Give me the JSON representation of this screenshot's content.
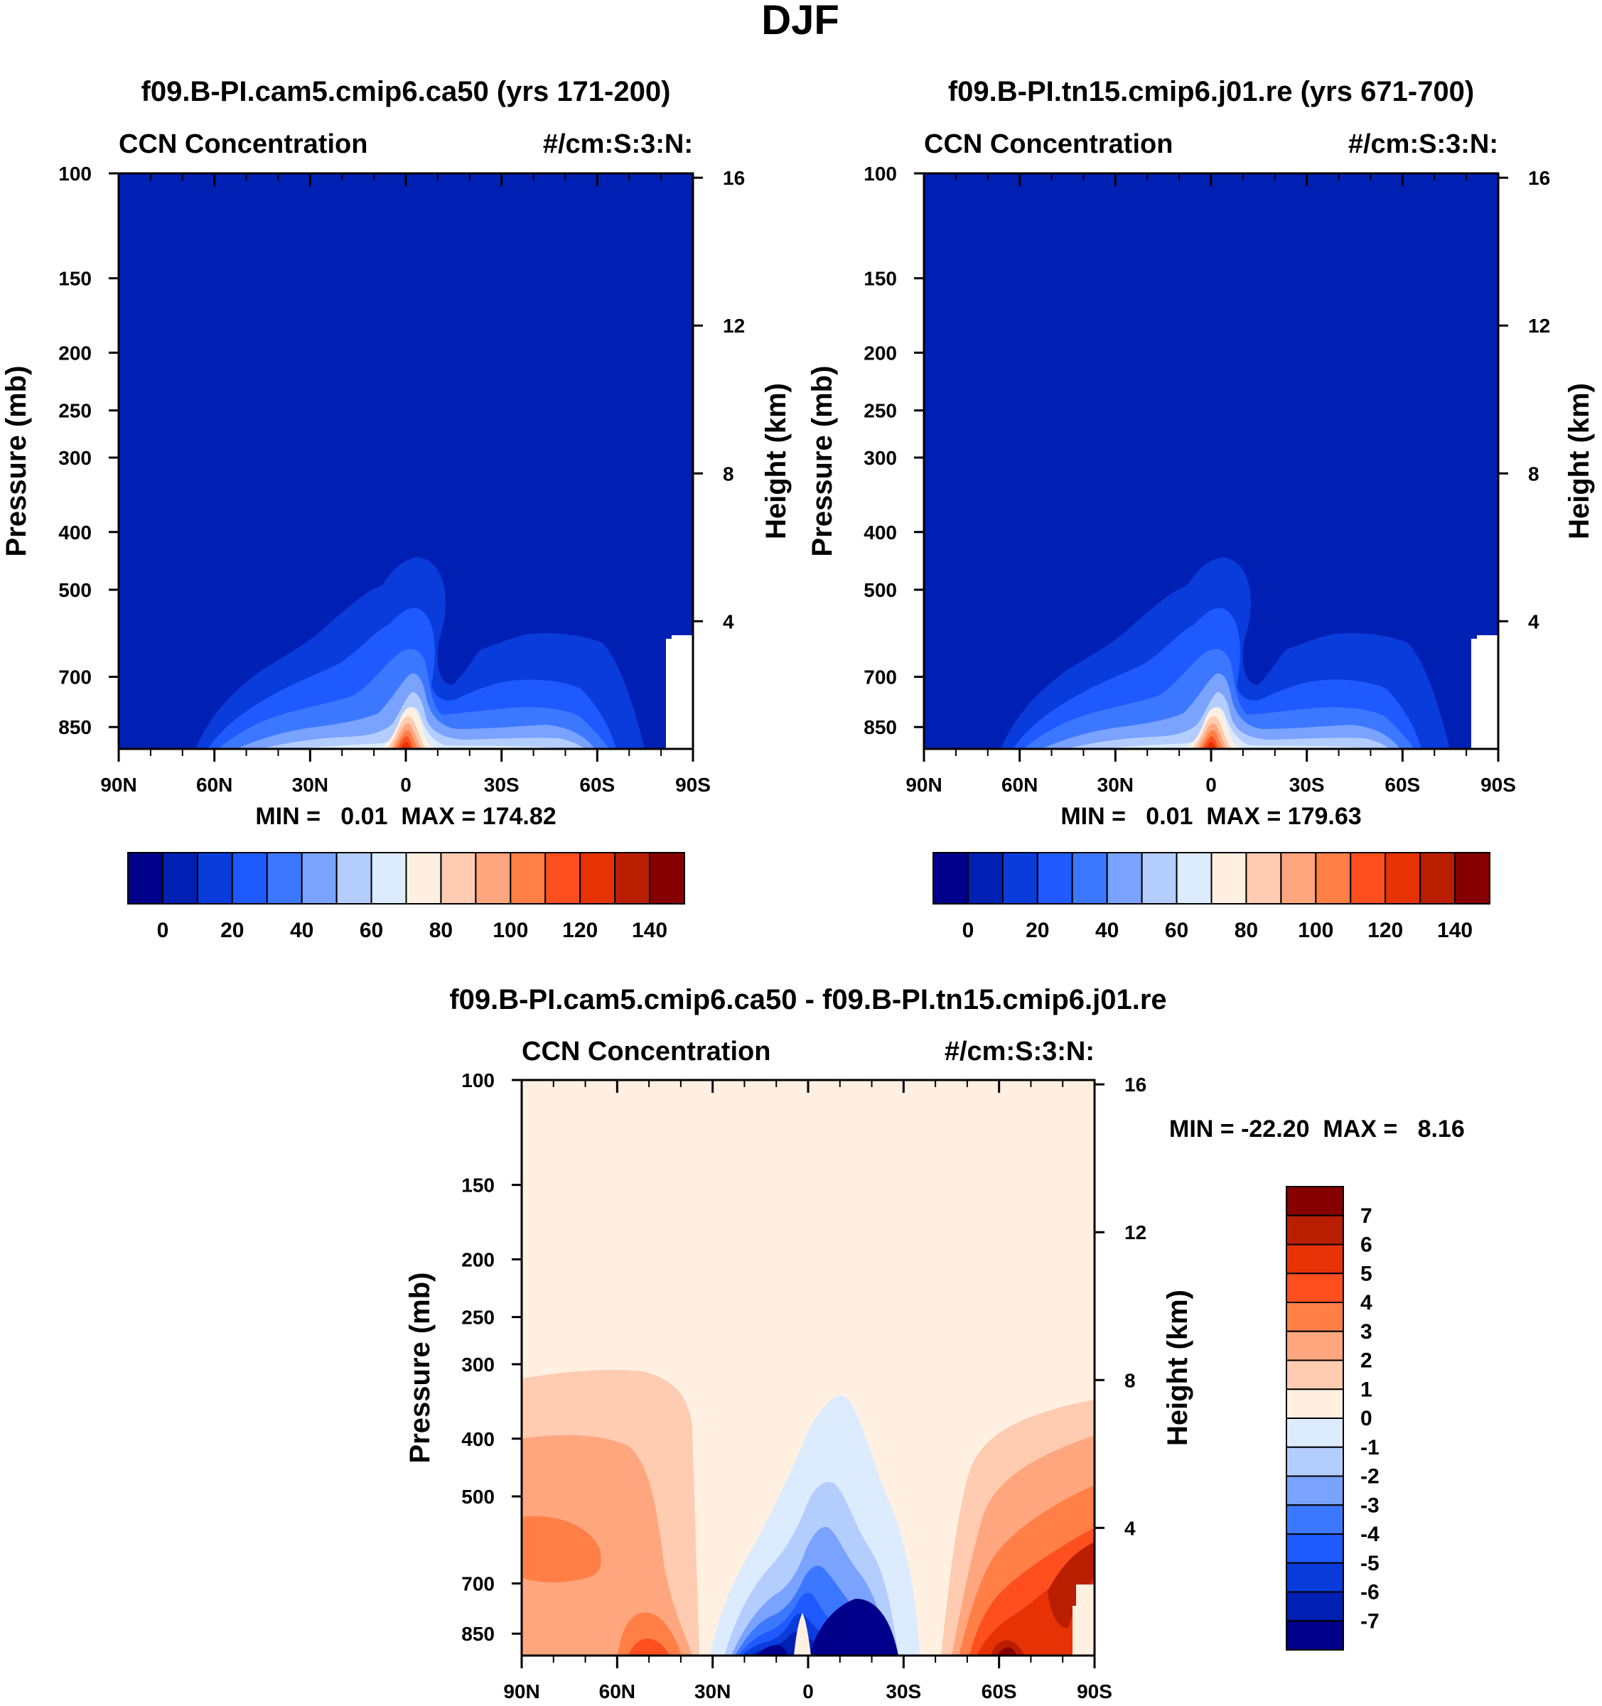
{
  "page_title": "DJF",
  "colors": {
    "scale_blue_to_red": [
      "#00008a",
      "#0020b4",
      "#0a3cdc",
      "#1e5aff",
      "#3c78ff",
      "#7aa2ff",
      "#b4cdff",
      "#ddebff",
      "#fff0e1",
      "#ffcbb1",
      "#ffa67e",
      "#ff7f46",
      "#ff4f1e",
      "#e63205",
      "#b91e00",
      "#870000"
    ],
    "diff_scale": [
      "#00008a",
      "#0020b4",
      "#0a3cdc",
      "#1e5aff",
      "#3c78ff",
      "#7aa2ff",
      "#b4cdff",
      "#ddebff",
      "#fff0e1",
      "#ffcbb1",
      "#ffa67e",
      "#ff7f46",
      "#ff4f1e",
      "#e63205",
      "#b91e00",
      "#870000"
    ]
  },
  "chart_data": [
    {
      "type": "heatmap",
      "title": "f09.B-PI.cam5.cmip6.ca50 (yrs 171-200)",
      "left_string": "CCN Concentration",
      "right_string": "#/cm:S:3:N:",
      "ylabel": "Pressure (mb)",
      "ylabel_right": "Height (km)",
      "x_ticks": [
        "90N",
        "60N",
        "30N",
        "0",
        "30S",
        "60S",
        "90S"
      ],
      "y_ticks": [
        "100",
        "150",
        "200",
        "250",
        "300",
        "400",
        "500",
        "700",
        "850"
      ],
      "y_ticks_right": [
        "16",
        "12",
        "8",
        "4"
      ],
      "stats": "MIN =   0.01  MAX = 174.82",
      "min": 0.01,
      "max": 174.82,
      "colorbar_labels": [
        "0",
        "20",
        "40",
        "60",
        "80",
        "100",
        "120",
        "140"
      ],
      "levels": [
        0,
        10,
        20,
        30,
        40,
        50,
        60,
        70,
        80,
        90,
        100,
        110,
        120,
        130,
        140
      ]
    },
    {
      "type": "heatmap",
      "title": "f09.B-PI.tn15.cmip6.j01.re (yrs 671-700)",
      "left_string": "CCN Concentration",
      "right_string": "#/cm:S:3:N:",
      "ylabel": "Pressure (mb)",
      "ylabel_right": "Height (km)",
      "x_ticks": [
        "90N",
        "60N",
        "30N",
        "0",
        "30S",
        "60S",
        "90S"
      ],
      "y_ticks": [
        "100",
        "150",
        "200",
        "250",
        "300",
        "400",
        "500",
        "700",
        "850"
      ],
      "y_ticks_right": [
        "16",
        "12",
        "8",
        "4"
      ],
      "stats": "MIN =   0.01  MAX = 179.63",
      "min": 0.01,
      "max": 179.63,
      "colorbar_labels": [
        "0",
        "20",
        "40",
        "60",
        "80",
        "100",
        "120",
        "140"
      ],
      "levels": [
        0,
        10,
        20,
        30,
        40,
        50,
        60,
        70,
        80,
        90,
        100,
        110,
        120,
        130,
        140
      ]
    },
    {
      "type": "heatmap",
      "title": "f09.B-PI.cam5.cmip6.ca50 - f09.B-PI.tn15.cmip6.j01.re",
      "left_string": "CCN Concentration",
      "right_string": "#/cm:S:3:N:",
      "ylabel": "Pressure (mb)",
      "ylabel_right": "Height (km)",
      "x_ticks": [
        "90N",
        "60N",
        "30N",
        "0",
        "30S",
        "60S",
        "90S"
      ],
      "y_ticks": [
        "100",
        "150",
        "200",
        "250",
        "300",
        "400",
        "500",
        "700",
        "850"
      ],
      "y_ticks_right": [
        "16",
        "12",
        "8",
        "4"
      ],
      "stats": "MIN = -22.20  MAX =   8.16",
      "min": -22.2,
      "max": 8.16,
      "colorbar_labels": [
        "7",
        "6",
        "5",
        "4",
        "3",
        "2",
        "1",
        "0",
        "-1",
        "-2",
        "-3",
        "-4",
        "-5",
        "-6",
        "-7"
      ],
      "levels": [
        -7,
        -6,
        -5,
        -4,
        -3,
        -2,
        -1,
        0,
        1,
        2,
        3,
        4,
        5,
        6,
        7
      ]
    }
  ]
}
